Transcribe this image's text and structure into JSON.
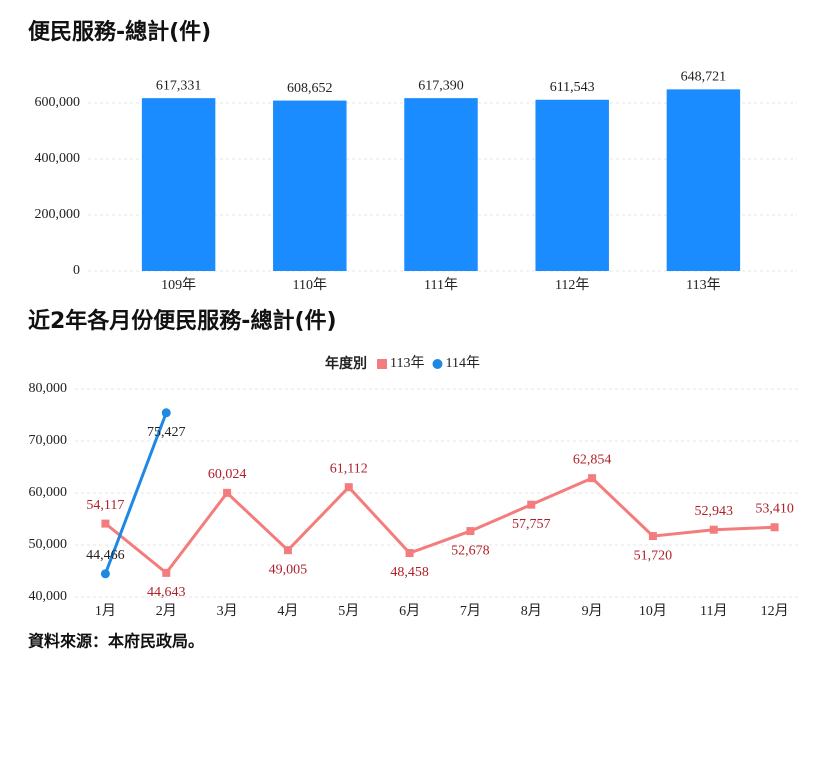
{
  "chart_data": [
    {
      "type": "bar",
      "title": "便民服務-總計(件)",
      "categories": [
        "109年",
        "110年",
        "111年",
        "112年",
        "113年"
      ],
      "values": [
        617331,
        608652,
        617390,
        611543,
        648721
      ],
      "value_labels": [
        "617,331",
        "608,652",
        "617,390",
        "611,543",
        "648,721"
      ],
      "color": "#1a8cff",
      "ylim": [
        0,
        700000
      ],
      "yticks": [
        0,
        {
          "value": 200000,
          "label": "200,000"
        },
        {
          "value": 400000,
          "label": "400,000"
        },
        {
          "value": 600000,
          "label": "600,000"
        }
      ],
      "grid": true
    },
    {
      "type": "line",
      "title": "近2年各月份便民服務-總計(件)",
      "legend_title": "年度別",
      "categories": [
        "1月",
        "2月",
        "3月",
        "4月",
        "5月",
        "6月",
        "7月",
        "8月",
        "9月",
        "10月",
        "11月",
        "12月"
      ],
      "series": [
        {
          "name": "113年",
          "color": "#f47c7c",
          "marker": "square",
          "values": [
            54117,
            44643,
            60024,
            49005,
            61112,
            48458,
            52678,
            57757,
            62854,
            51720,
            52943,
            53410
          ],
          "value_labels": [
            "54,117",
            "44,643",
            "60,024",
            "49,005",
            "61,112",
            "48,458",
            "52,678",
            "57,757",
            "62,854",
            "51,720",
            "52,943",
            "53,410"
          ]
        },
        {
          "name": "114年",
          "color": "#1e88e5",
          "marker": "circle",
          "values": [
            44466,
            75427,
            null,
            null,
            null,
            null,
            null,
            null,
            null,
            null,
            null,
            null
          ],
          "value_labels": [
            "44,466",
            "75,427",
            null,
            null,
            null,
            null,
            null,
            null,
            null,
            null,
            null,
            null
          ]
        }
      ],
      "ylim": [
        40000,
        80000
      ],
      "yticks": [
        {
          "value": 40000,
          "label": "40,000"
        },
        {
          "value": 50000,
          "label": "50,000"
        },
        {
          "value": 60000,
          "label": "60,000"
        },
        {
          "value": 70000,
          "label": "70,000"
        },
        {
          "value": 80000,
          "label": "80,000"
        }
      ],
      "grid": true
    }
  ],
  "source": "資料來源：本府民政局。"
}
